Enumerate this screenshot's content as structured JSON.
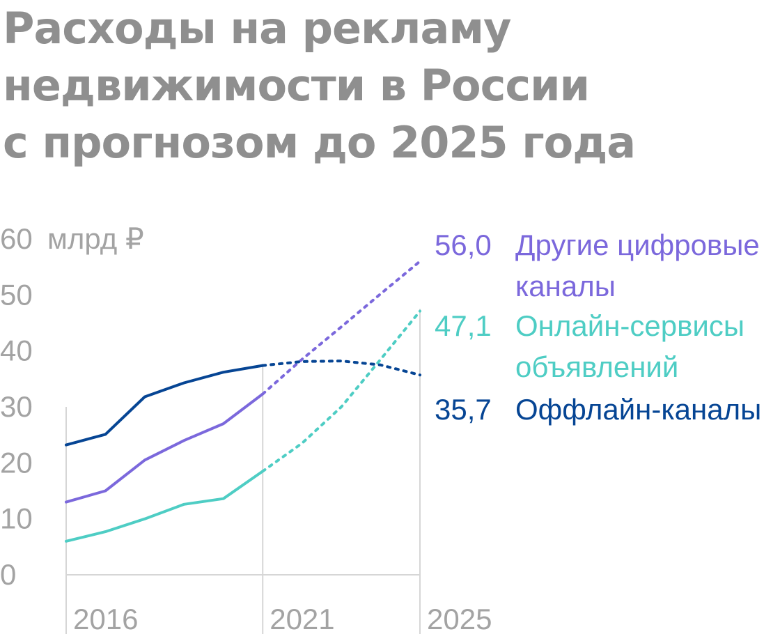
{
  "title_lines": [
    "Расходы на рекламу",
    "недвижимости в России",
    "с прогнозом до 2025 года"
  ],
  "chart_data": {
    "type": "line",
    "title": "Расходы на рекламу недвижимости в России с прогнозом до 2025 года",
    "y_unit": "млрд ₽",
    "ylim": [
      0,
      60
    ],
    "y_ticks": [
      0,
      10,
      20,
      30,
      40,
      50,
      60
    ],
    "xlim": [
      2016,
      2025
    ],
    "x_ticks": [
      2016,
      2021,
      2025
    ],
    "grid": false,
    "legend": "right",
    "series": [
      {
        "name": "Другие цифровые каналы",
        "label_lines": [
          "Другие цифровые",
          "каналы"
        ],
        "end_label": "56,0",
        "color": "#7b68dc",
        "actual": {
          "x": [
            2016,
            2017,
            2018,
            2019,
            2020,
            2021
          ],
          "y": [
            13,
            15,
            20.5,
            24,
            27,
            32.3
          ]
        },
        "forecast": {
          "x": [
            2021,
            2022,
            2023,
            2024,
            2025
          ],
          "y": [
            32.3,
            38.5,
            44.3,
            50.2,
            56.0
          ]
        }
      },
      {
        "name": "Онлайн-сервисы объявлений",
        "label_lines": [
          "Онлайн-сервисы",
          "объявлений"
        ],
        "end_label": "47,1",
        "color": "#4ecdc4",
        "actual": {
          "x": [
            2016,
            2017,
            2018,
            2019,
            2020,
            2021
          ],
          "y": [
            6,
            7.7,
            10,
            12.6,
            13.6,
            18.5
          ]
        },
        "forecast": {
          "x": [
            2021,
            2022,
            2023,
            2024,
            2025
          ],
          "y": [
            18.5,
            23.5,
            30,
            38.5,
            47.1
          ]
        }
      },
      {
        "name": "Оффлайн-каналы",
        "label_lines": [
          "Оффлайн-каналы"
        ],
        "end_label": "35,7",
        "color": "#064594",
        "actual": {
          "x": [
            2016,
            2017,
            2018,
            2019,
            2020,
            2021
          ],
          "y": [
            23.2,
            25.1,
            31.8,
            34.3,
            36.2,
            37.4
          ]
        },
        "forecast": {
          "x": [
            2021,
            2022,
            2023,
            2024,
            2025
          ],
          "y": [
            37.4,
            38.1,
            38.2,
            37.5,
            35.7
          ]
        }
      }
    ]
  }
}
